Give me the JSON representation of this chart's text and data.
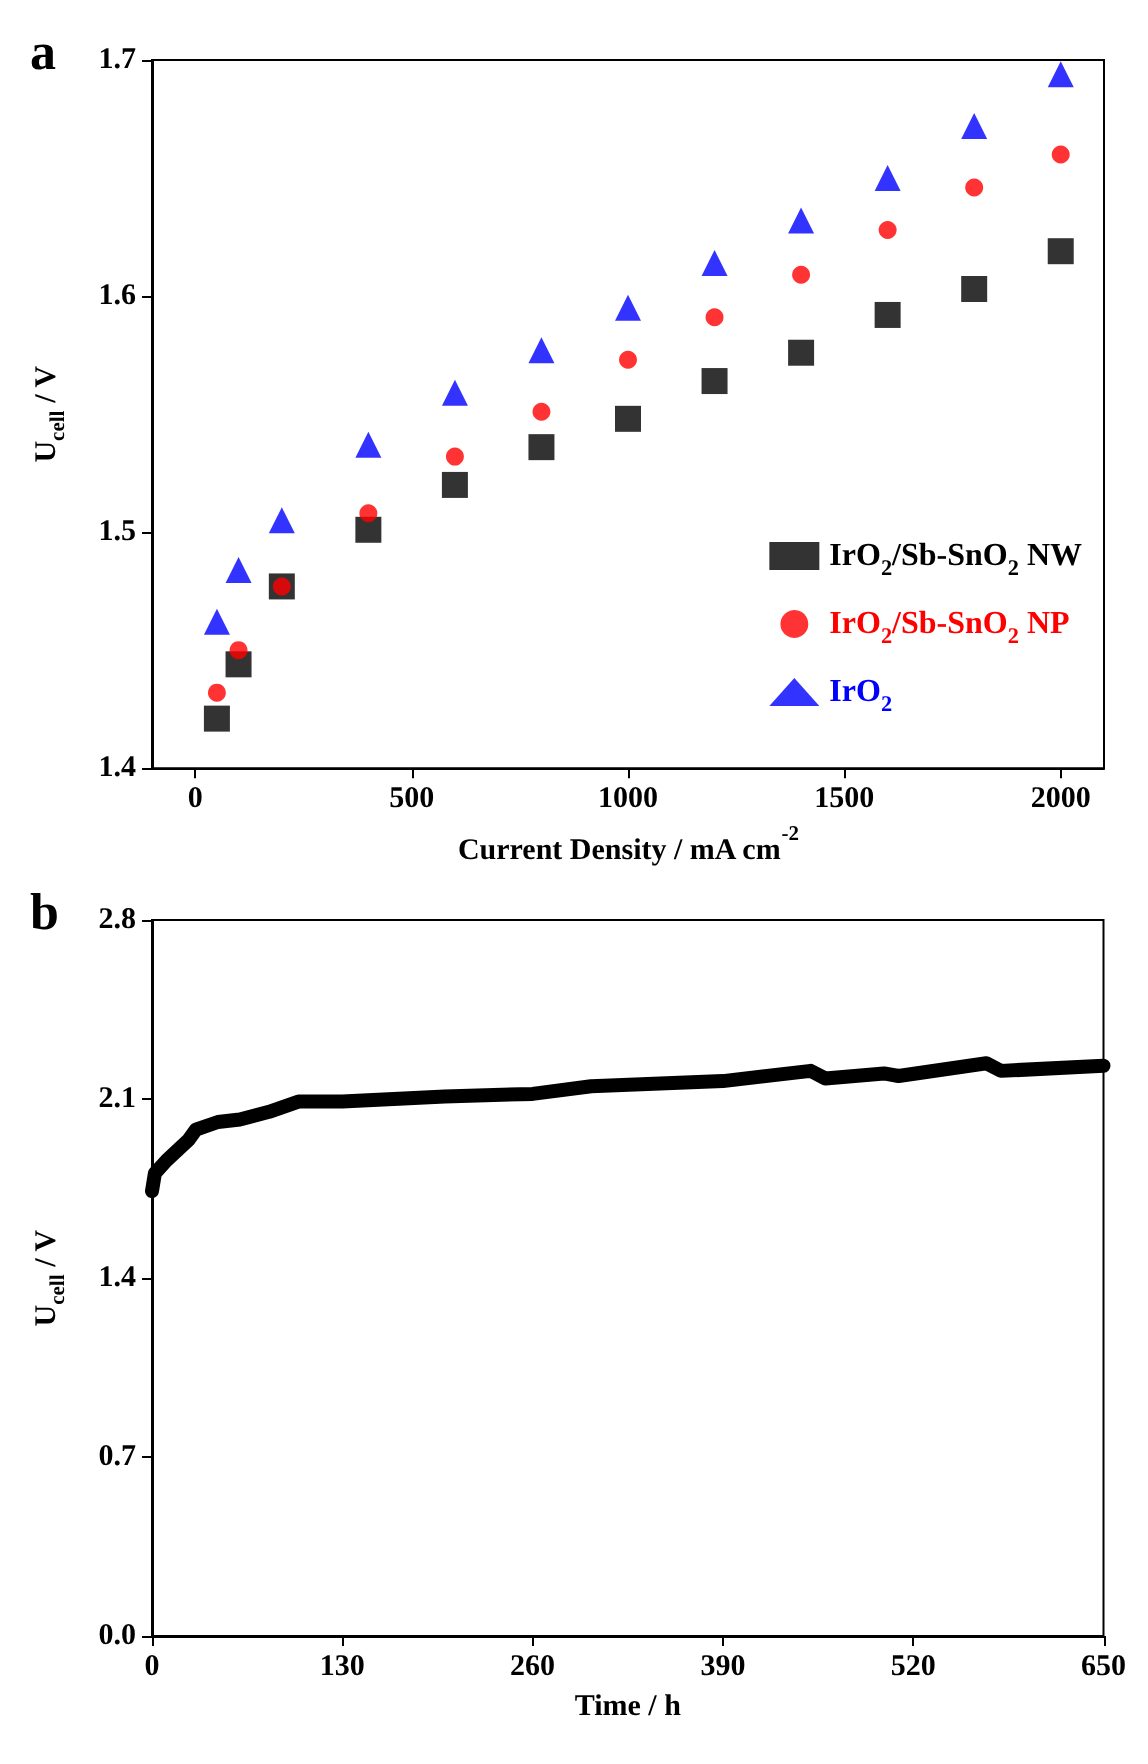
{
  "chart_data": [
    {
      "type": "scatter",
      "title": "a",
      "xlabel": "Current Density / mA cm$^{-2}$",
      "ylabel": "U$_{cell}$ / V",
      "xlim": [
        -100,
        2100
      ],
      "ylim": [
        1.4,
        1.7
      ],
      "xticks": [
        0,
        500,
        1000,
        1500,
        2000
      ],
      "yticks": [
        1.4,
        1.5,
        1.6,
        1.7
      ],
      "grid": false,
      "legend": "bottom right",
      "x": [
        50,
        100,
        200,
        400,
        600,
        800,
        1000,
        1200,
        1400,
        1600,
        1800,
        2000
      ],
      "series": [
        {
          "name": "IrO$_{2}$/Sb-SnO$_{2}$ NW",
          "color": "#000000",
          "marker": "square",
          "values": [
            1.421,
            1.444,
            1.477,
            1.501,
            1.52,
            1.536,
            1.548,
            1.564,
            1.576,
            1.592,
            1.603,
            1.619
          ]
        },
        {
          "name": "IrO$_{2}$/Sb-SnO$_{2}$ NP",
          "color": "#ff0000",
          "marker": "circle",
          "values": [
            1.432,
            1.45,
            1.477,
            1.508,
            1.532,
            1.551,
            1.573,
            1.591,
            1.609,
            1.628,
            1.646,
            1.66
          ]
        },
        {
          "name": "IrO$_{2}$",
          "color": "#0000ff",
          "marker": "triangle",
          "values": [
            1.462,
            1.484,
            1.505,
            1.537,
            1.559,
            1.577,
            1.595,
            1.614,
            1.632,
            1.65,
            1.672,
            1.694
          ]
        }
      ]
    },
    {
      "type": "line",
      "title": "b",
      "xlabel": "Time / h",
      "ylabel": "U$_{cell}$ / V",
      "xlim": [
        0,
        650
      ],
      "ylim": [
        0,
        2.8
      ],
      "xticks": [
        0,
        130,
        260,
        390,
        520,
        650
      ],
      "yticks": [
        {
          "value": 0,
          "label": "0.0"
        },
        {
          "value": 0.7,
          "label": "0.7"
        },
        {
          "value": 1.4,
          "label": "1.4"
        },
        {
          "value": 2.1,
          "label": "2.1"
        },
        {
          "value": 2.8,
          "label": "2.8"
        }
      ],
      "grid": false,
      "legend": false,
      "x": [
        0,
        2,
        10,
        25,
        30,
        45,
        60,
        80,
        100,
        130,
        200,
        260,
        300,
        390,
        450,
        460,
        500,
        510,
        570,
        580,
        650
      ],
      "series": [
        {
          "color": "#000000",
          "values": [
            1.74,
            1.81,
            1.86,
            1.94,
            1.98,
            2.01,
            2.02,
            2.05,
            2.09,
            2.09,
            2.11,
            2.12,
            2.15,
            2.17,
            2.21,
            2.18,
            2.2,
            2.19,
            2.24,
            2.21,
            2.23
          ]
        }
      ]
    }
  ]
}
